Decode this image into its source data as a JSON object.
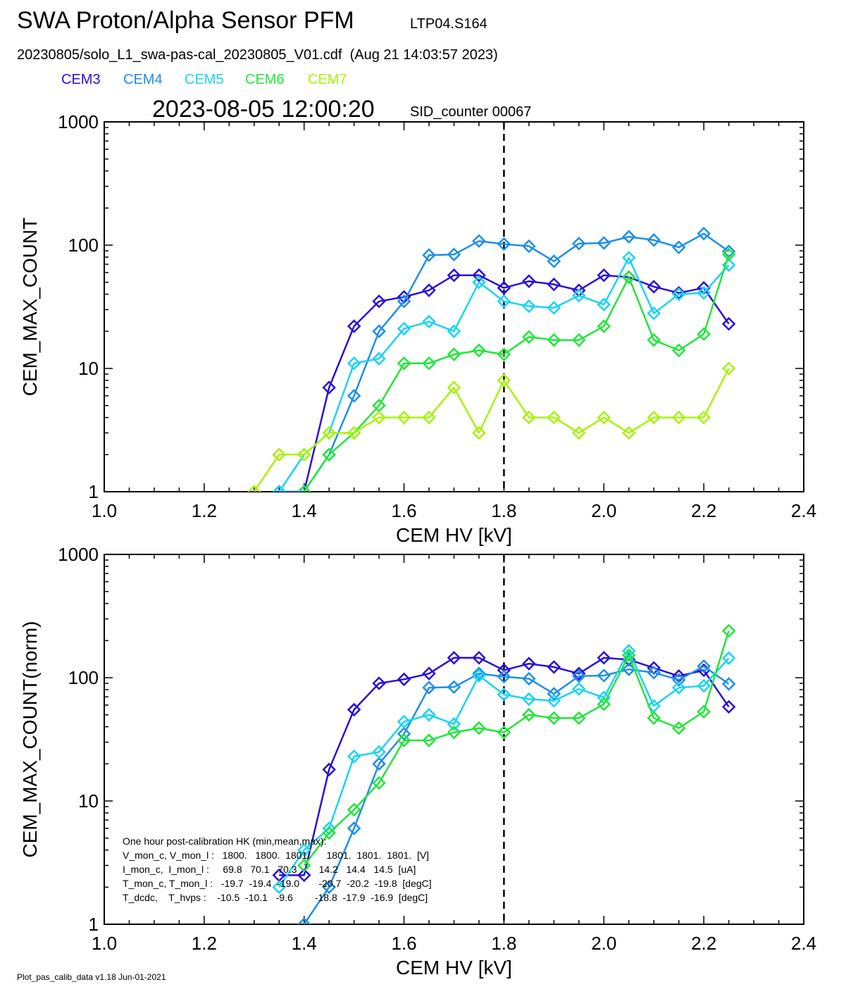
{
  "header": {
    "title": "SWA Proton/Alpha Sensor PFM",
    "test_id": "LTP04.S164",
    "file_line": "20230805/solo_L1_swa-pas-cal_20230805_V01.cdf  (Aug 21 14:03:57 2023)",
    "timestamp": "2023-08-05 12:00:20",
    "sid": "SID_counter 00067"
  },
  "legend": [
    {
      "name": "CEM3",
      "color": "#2b0fd6"
    },
    {
      "name": "CEM4",
      "color": "#1f8fe6"
    },
    {
      "name": "CEM5",
      "color": "#19d4f2"
    },
    {
      "name": "CEM6",
      "color": "#22e63a"
    },
    {
      "name": "CEM7",
      "color": "#a8f20a"
    }
  ],
  "hk_box": {
    "lines": [
      "One hour post-calibration HK (min,mean,max):",
      "V_mon_c, V_mon_l :   1800.   1800.  1801.      1801.  1801.  1801.  [V]",
      "I_mon_c,  I_mon_l :     69.8   70.1   70.3        14.2   14.4   14.5  [uA]",
      "T_mon_c, T_mon_l :   -19.7  -19.4  -19.0       -20.7  -20.2  -19.8  [degC]",
      "T_dcdc,    T_hvps :    -10.5  -10.1   -9.6        -18.8  -17.9  -16.9  [degC]"
    ]
  },
  "footer": "Plot_pas_calib_data v1.18 Jun-01-2021",
  "chart_data": [
    {
      "type": "line",
      "xlabel": "CEM HV [kV]",
      "ylabel": "CEM_MAX_COUNT",
      "xlim": [
        1.0,
        2.4
      ],
      "ylim": [
        1,
        1000
      ],
      "yscale": "log",
      "x_ticks": [
        "1.0",
        "1.2",
        "1.4",
        "1.6",
        "1.8",
        "2.0",
        "2.2",
        "2.4"
      ],
      "y_ticks": [
        "1",
        "10",
        "100",
        "1000"
      ],
      "vline_x": 1.8,
      "series": [
        {
          "name": "CEM3",
          "color": "#2b0fd6",
          "points": [
            [
              1.35,
              1
            ],
            [
              1.4,
              1
            ],
            [
              1.45,
              7
            ],
            [
              1.5,
              22
            ],
            [
              1.55,
              35
            ],
            [
              1.6,
              38
            ],
            [
              1.65,
              43
            ],
            [
              1.7,
              57
            ],
            [
              1.75,
              57
            ],
            [
              1.8,
              45
            ],
            [
              1.85,
              51
            ],
            [
              1.9,
              48
            ],
            [
              1.95,
              43
            ],
            [
              2.0,
              57
            ],
            [
              2.05,
              55
            ],
            [
              2.1,
              46
            ],
            [
              2.15,
              41
            ],
            [
              2.2,
              45
            ],
            [
              2.25,
              23
            ]
          ]
        },
        {
          "name": "CEM4",
          "color": "#1f8fe6",
          "points": [
            [
              1.35,
              1
            ],
            [
              1.4,
              1
            ],
            [
              1.45,
              2
            ],
            [
              1.5,
              6
            ],
            [
              1.55,
              20
            ],
            [
              1.6,
              35
            ],
            [
              1.65,
              83
            ],
            [
              1.7,
              84
            ],
            [
              1.75,
              108
            ],
            [
              1.8,
              102
            ],
            [
              1.85,
              98
            ],
            [
              1.9,
              74
            ],
            [
              1.95,
              103
            ],
            [
              2.0,
              104
            ],
            [
              2.05,
              117
            ],
            [
              2.1,
              110
            ],
            [
              2.15,
              96
            ],
            [
              2.2,
              124
            ],
            [
              2.25,
              89
            ]
          ]
        },
        {
          "name": "CEM5",
          "color": "#19d4f2",
          "points": [
            [
              1.35,
              1
            ],
            [
              1.4,
              2
            ],
            [
              1.45,
              3
            ],
            [
              1.5,
              11
            ],
            [
              1.55,
              12
            ],
            [
              1.6,
              21
            ],
            [
              1.65,
              24
            ],
            [
              1.7,
              20
            ],
            [
              1.75,
              50
            ],
            [
              1.8,
              35
            ],
            [
              1.85,
              32
            ],
            [
              1.9,
              31
            ],
            [
              1.95,
              39
            ],
            [
              2.0,
              33
            ],
            [
              2.05,
              79
            ],
            [
              2.1,
              28
            ],
            [
              2.15,
              40
            ],
            [
              2.2,
              41
            ],
            [
              2.25,
              69
            ]
          ]
        },
        {
          "name": "CEM6",
          "color": "#22e63a",
          "points": [
            [
              1.4,
              1
            ],
            [
              1.45,
              2
            ],
            [
              1.5,
              3
            ],
            [
              1.55,
              5
            ],
            [
              1.6,
              11
            ],
            [
              1.65,
              11
            ],
            [
              1.7,
              13
            ],
            [
              1.75,
              14
            ],
            [
              1.8,
              13
            ],
            [
              1.85,
              18
            ],
            [
              1.9,
              17
            ],
            [
              1.95,
              17
            ],
            [
              2.0,
              22
            ],
            [
              2.05,
              55
            ],
            [
              2.1,
              17
            ],
            [
              2.15,
              14
            ],
            [
              2.2,
              19
            ],
            [
              2.25,
              84
            ]
          ]
        },
        {
          "name": "CEM7",
          "color": "#a8f20a",
          "points": [
            [
              1.3,
              1
            ],
            [
              1.35,
              2
            ],
            [
              1.4,
              2
            ],
            [
              1.45,
              3
            ],
            [
              1.5,
              3
            ],
            [
              1.55,
              4
            ],
            [
              1.6,
              4
            ],
            [
              1.65,
              4
            ],
            [
              1.7,
              7
            ],
            [
              1.75,
              3
            ],
            [
              1.8,
              8
            ],
            [
              1.85,
              4
            ],
            [
              1.9,
              4
            ],
            [
              1.95,
              3
            ],
            [
              2.0,
              4
            ],
            [
              2.05,
              3
            ],
            [
              2.1,
              4
            ],
            [
              2.15,
              4
            ],
            [
              2.2,
              4
            ],
            [
              2.25,
              10
            ]
          ]
        }
      ]
    },
    {
      "type": "line",
      "xlabel": "CEM HV [kV]",
      "ylabel": "CEM_MAX_COUNT(norm)",
      "xlim": [
        1.0,
        2.4
      ],
      "ylim": [
        1,
        1000
      ],
      "yscale": "log",
      "x_ticks": [
        "1.0",
        "1.2",
        "1.4",
        "1.6",
        "1.8",
        "2.0",
        "2.2",
        "2.4"
      ],
      "y_ticks": [
        "1",
        "10",
        "100",
        "1000"
      ],
      "vline_x": 1.8,
      "series": [
        {
          "name": "CEM3",
          "color": "#2b0fd6",
          "points": [
            [
              1.35,
              2.5
            ],
            [
              1.4,
              2.5
            ],
            [
              1.45,
              18
            ],
            [
              1.5,
              55
            ],
            [
              1.55,
              90
            ],
            [
              1.6,
              97
            ],
            [
              1.65,
              108
            ],
            [
              1.7,
              145
            ],
            [
              1.75,
              145
            ],
            [
              1.8,
              115
            ],
            [
              1.85,
              130
            ],
            [
              1.9,
              122
            ],
            [
              1.95,
              108
            ],
            [
              2.0,
              145
            ],
            [
              2.05,
              140
            ],
            [
              2.1,
              120
            ],
            [
              2.15,
              103
            ],
            [
              2.2,
              115
            ],
            [
              2.25,
              58
            ]
          ]
        },
        {
          "name": "CEM4",
          "color": "#1f8fe6",
          "points": [
            [
              1.4,
              1
            ],
            [
              1.45,
              2
            ],
            [
              1.5,
              6
            ],
            [
              1.55,
              20
            ],
            [
              1.6,
              35
            ],
            [
              1.65,
              83
            ],
            [
              1.7,
              84
            ],
            [
              1.75,
              108
            ],
            [
              1.8,
              102
            ],
            [
              1.85,
              98
            ],
            [
              1.9,
              74
            ],
            [
              1.95,
              103
            ],
            [
              2.0,
              104
            ],
            [
              2.05,
              117
            ],
            [
              2.1,
              110
            ],
            [
              2.15,
              96
            ],
            [
              2.2,
              124
            ],
            [
              2.25,
              89
            ]
          ]
        },
        {
          "name": "CEM5",
          "color": "#19d4f2",
          "points": [
            [
              1.35,
              2
            ],
            [
              1.4,
              4
            ],
            [
              1.45,
              6
            ],
            [
              1.5,
              23
            ],
            [
              1.55,
              25
            ],
            [
              1.6,
              44
            ],
            [
              1.65,
              50
            ],
            [
              1.7,
              42
            ],
            [
              1.75,
              104
            ],
            [
              1.8,
              73
            ],
            [
              1.85,
              67
            ],
            [
              1.9,
              65
            ],
            [
              1.95,
              81
            ],
            [
              2.0,
              69
            ],
            [
              2.05,
              165
            ],
            [
              2.1,
              59
            ],
            [
              2.15,
              83
            ],
            [
              2.2,
              86
            ],
            [
              2.25,
              144
            ]
          ]
        },
        {
          "name": "CEM6",
          "color": "#22e63a",
          "points": [
            [
              1.4,
              3
            ],
            [
              1.45,
              5.5
            ],
            [
              1.5,
              8.5
            ],
            [
              1.55,
              14
            ],
            [
              1.6,
              31
            ],
            [
              1.65,
              31
            ],
            [
              1.7,
              36
            ],
            [
              1.75,
              39
            ],
            [
              1.8,
              36
            ],
            [
              1.85,
              50
            ],
            [
              1.9,
              47
            ],
            [
              1.95,
              47
            ],
            [
              2.0,
              61
            ],
            [
              2.05,
              152
            ],
            [
              2.1,
              47
            ],
            [
              2.15,
              39
            ],
            [
              2.2,
              53
            ],
            [
              2.25,
              240
            ]
          ]
        }
      ]
    }
  ]
}
